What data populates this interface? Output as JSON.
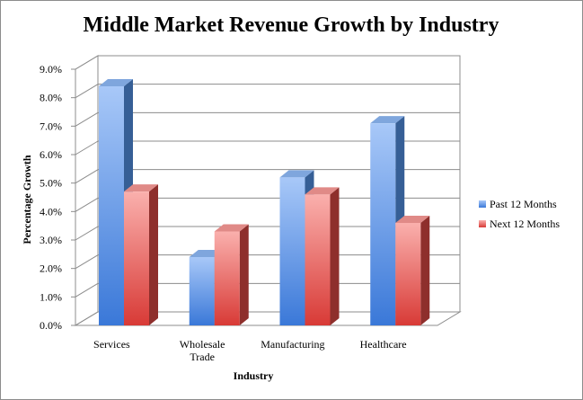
{
  "chart_data": {
    "type": "bar",
    "title": "Middle Market Revenue Growth by Industry",
    "xlabel": "Industry",
    "ylabel": "Percentage Growth",
    "categories": [
      [
        "Services"
      ],
      [
        "Wholesale",
        "Trade"
      ],
      [
        "Manufacturing"
      ],
      [
        "Healthcare"
      ]
    ],
    "series": [
      {
        "name": "Past 12 Months",
        "values": [
          8.4,
          2.4,
          5.2,
          7.1
        ],
        "color": "#4f81bd"
      },
      {
        "name": "Next 12 Months",
        "values": [
          4.7,
          3.3,
          4.6,
          3.6
        ],
        "color": "#c0504d"
      }
    ],
    "ylim": [
      0,
      9
    ],
    "y_ticks": [
      "0.0%",
      "1.0%",
      "2.0%",
      "3.0%",
      "4.0%",
      "5.0%",
      "6.0%",
      "7.0%",
      "8.0%",
      "9.0%"
    ],
    "grid": true,
    "three_d": true,
    "legend_position": "right"
  }
}
